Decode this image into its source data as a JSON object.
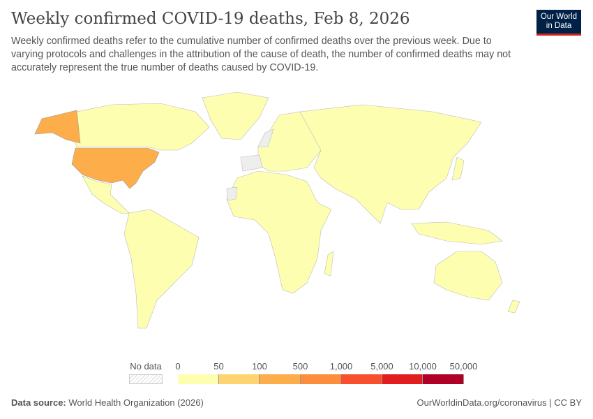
{
  "header": {
    "title": "Weekly confirmed COVID-19 deaths, Feb 8, 2026",
    "subtitle": "Weekly confirmed deaths refer to the cumulative number of confirmed deaths over the previous week. Due to varying protocols and challenges in the attribution of the cause of death, the number of confirmed deaths may not accurately represent the true number of deaths caused by COVID-19.",
    "logo": "Our World in Data"
  },
  "legend": {
    "no_data_label": "No data",
    "ticks": [
      "0",
      "50",
      "100",
      "500",
      "1,000",
      "5,000",
      "10,000",
      "50,000"
    ],
    "bin_colors": [
      "#fefeb1",
      "#fed370",
      "#fdae4b",
      "#fc8d3c",
      "#f84f2e",
      "#e21d1f",
      "#b10026"
    ],
    "no_data_pattern": "hatched-grey"
  },
  "map": {
    "highlight": {
      "country": "United States",
      "bin": "100-500",
      "color": "#fdae4b"
    },
    "default_bin": "0-50",
    "no_data_regions": [
      "Spain",
      "Western Sahara",
      "Scandinavia (part)"
    ]
  },
  "footer": {
    "source_label": "Data source:",
    "source": "World Health Organization (2026)",
    "url": "OurWorldinData.org/coronavirus | CC BY"
  }
}
